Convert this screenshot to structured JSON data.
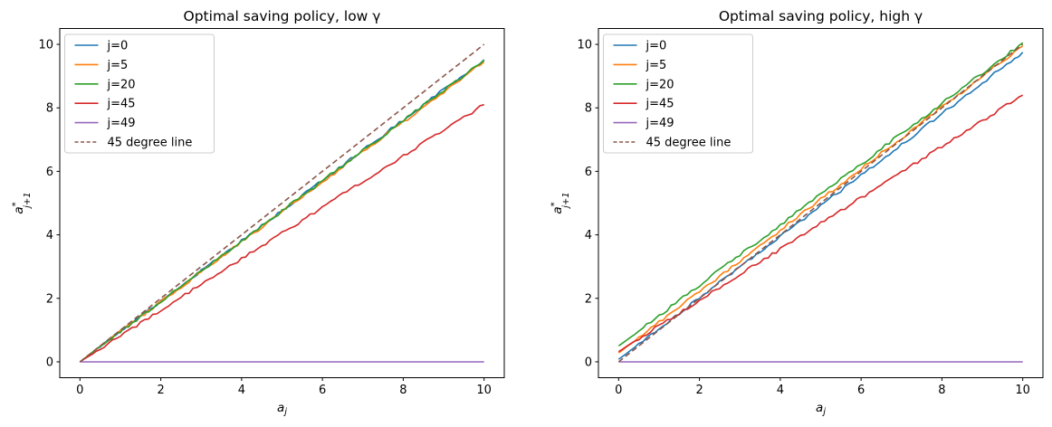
{
  "figure": {
    "background": "#ffffff",
    "spine_color": "#000000",
    "legend_border_color": "#cccccc",
    "legend_bg": "#ffffff"
  },
  "chart_data": [
    {
      "type": "line",
      "title": "Optimal saving policy, low γ",
      "xlabel": {
        "base": "a",
        "sub": "j"
      },
      "ylabel": {
        "base": "a",
        "sup": "*",
        "sub": "j+1"
      },
      "xlim": [
        -0.5,
        10.5
      ],
      "ylim": [
        -0.5,
        10.5
      ],
      "xticks": [
        0,
        2,
        4,
        6,
        8,
        10
      ],
      "yticks": [
        0,
        2,
        4,
        6,
        8,
        10
      ],
      "grid": false,
      "legend_position": "upper left",
      "x": [
        0,
        0.5,
        1,
        1.5,
        2,
        2.5,
        3,
        3.5,
        4,
        4.5,
        5,
        5.5,
        6,
        6.5,
        7,
        7.5,
        8,
        8.5,
        9,
        9.5,
        10
      ],
      "series": [
        {
          "name": "j=0",
          "color": "#1f77b4",
          "style": "solid",
          "values": [
            0,
            0.48,
            0.95,
            1.43,
            1.9,
            2.38,
            2.86,
            3.33,
            3.81,
            4.28,
            4.76,
            5.24,
            5.71,
            6.19,
            6.66,
            7.14,
            7.62,
            8.09,
            8.57,
            9.04,
            9.52
          ]
        },
        {
          "name": "j=5",
          "color": "#ff7f0e",
          "style": "solid",
          "values": [
            0,
            0.47,
            0.95,
            1.42,
            1.89,
            2.36,
            2.84,
            3.31,
            3.78,
            4.25,
            4.73,
            5.2,
            5.67,
            6.14,
            6.62,
            7.09,
            7.56,
            8.03,
            8.51,
            8.98,
            9.45
          ]
        },
        {
          "name": "j=20",
          "color": "#2ca02c",
          "style": "solid",
          "values": [
            0,
            0.48,
            0.95,
            1.43,
            1.9,
            2.38,
            2.85,
            3.33,
            3.8,
            4.28,
            4.75,
            5.23,
            5.7,
            6.18,
            6.65,
            7.13,
            7.6,
            8.08,
            8.55,
            9.03,
            9.5
          ]
        },
        {
          "name": "j=45",
          "color": "#d62728",
          "style": "solid",
          "values": [
            0,
            0.41,
            0.81,
            1.22,
            1.62,
            2.03,
            2.43,
            2.84,
            3.24,
            3.65,
            4.05,
            4.46,
            4.86,
            5.27,
            5.67,
            6.08,
            6.48,
            6.89,
            7.29,
            7.7,
            8.1
          ]
        },
        {
          "name": "j=49",
          "color": "#9467bd",
          "style": "solid",
          "values": [
            0,
            0,
            0,
            0,
            0,
            0,
            0,
            0,
            0,
            0,
            0,
            0,
            0,
            0,
            0,
            0,
            0,
            0,
            0,
            0,
            0
          ]
        },
        {
          "name": "45 degree line",
          "color": "#8c564b",
          "style": "dashed",
          "values": [
            0,
            0.5,
            1,
            1.5,
            2,
            2.5,
            3,
            3.5,
            4,
            4.5,
            5,
            5.5,
            6,
            6.5,
            7,
            7.5,
            8,
            8.5,
            9,
            9.5,
            10
          ]
        }
      ]
    },
    {
      "type": "line",
      "title": "Optimal saving policy, high γ",
      "xlabel": {
        "base": "a",
        "sub": "j"
      },
      "ylabel": {
        "base": "a",
        "sup": "*",
        "sub": "j+1"
      },
      "xlim": [
        -0.5,
        10.5
      ],
      "ylim": [
        -0.5,
        10.5
      ],
      "xticks": [
        0,
        2,
        4,
        6,
        8,
        10
      ],
      "yticks": [
        0,
        2,
        4,
        6,
        8,
        10
      ],
      "grid": false,
      "legend_position": "upper left",
      "x": [
        0,
        0.5,
        1,
        1.5,
        2,
        2.5,
        3,
        3.5,
        4,
        4.5,
        5,
        5.5,
        6,
        6.5,
        7,
        7.5,
        8,
        8.5,
        9,
        9.5,
        10
      ],
      "series": [
        {
          "name": "j=0",
          "color": "#1f77b4",
          "style": "solid",
          "values": [
            0.08,
            0.56,
            1.05,
            1.53,
            2.01,
            2.5,
            2.98,
            3.46,
            3.95,
            4.43,
            4.92,
            5.4,
            5.88,
            6.37,
            6.85,
            7.33,
            7.82,
            8.3,
            8.78,
            9.27,
            9.75
          ]
        },
        {
          "name": "j=5",
          "color": "#ff7f0e",
          "style": "solid",
          "values": [
            0.28,
            0.76,
            1.25,
            1.73,
            2.21,
            2.7,
            3.18,
            3.66,
            4.15,
            4.63,
            5.12,
            5.6,
            6.08,
            6.57,
            7.05,
            7.53,
            8.02,
            8.5,
            8.98,
            9.47,
            9.95
          ]
        },
        {
          "name": "j=20",
          "color": "#2ca02c",
          "style": "solid",
          "values": [
            0.5,
            0.98,
            1.46,
            1.93,
            2.41,
            2.89,
            3.37,
            3.84,
            4.32,
            4.8,
            5.28,
            5.75,
            6.23,
            6.71,
            7.19,
            7.66,
            8.14,
            8.62,
            9.1,
            9.57,
            10.05
          ]
        },
        {
          "name": "j=45",
          "color": "#d62728",
          "style": "solid",
          "values": [
            0.32,
            0.72,
            1.13,
            1.53,
            1.94,
            2.34,
            2.74,
            3.15,
            3.55,
            3.96,
            4.36,
            4.76,
            5.17,
            5.57,
            5.98,
            6.38,
            6.78,
            7.19,
            7.59,
            8.0,
            8.4
          ]
        },
        {
          "name": "j=49",
          "color": "#9467bd",
          "style": "solid",
          "values": [
            0,
            0,
            0,
            0,
            0,
            0,
            0,
            0,
            0,
            0,
            0,
            0,
            0,
            0,
            0,
            0,
            0,
            0,
            0,
            0,
            0
          ]
        },
        {
          "name": "45 degree line",
          "color": "#8c564b",
          "style": "dashed",
          "values": [
            0,
            0.5,
            1,
            1.5,
            2,
            2.5,
            3,
            3.5,
            4,
            4.5,
            5,
            5.5,
            6,
            6.5,
            7,
            7.5,
            8,
            8.5,
            9,
            9.5,
            10
          ]
        }
      ]
    }
  ]
}
